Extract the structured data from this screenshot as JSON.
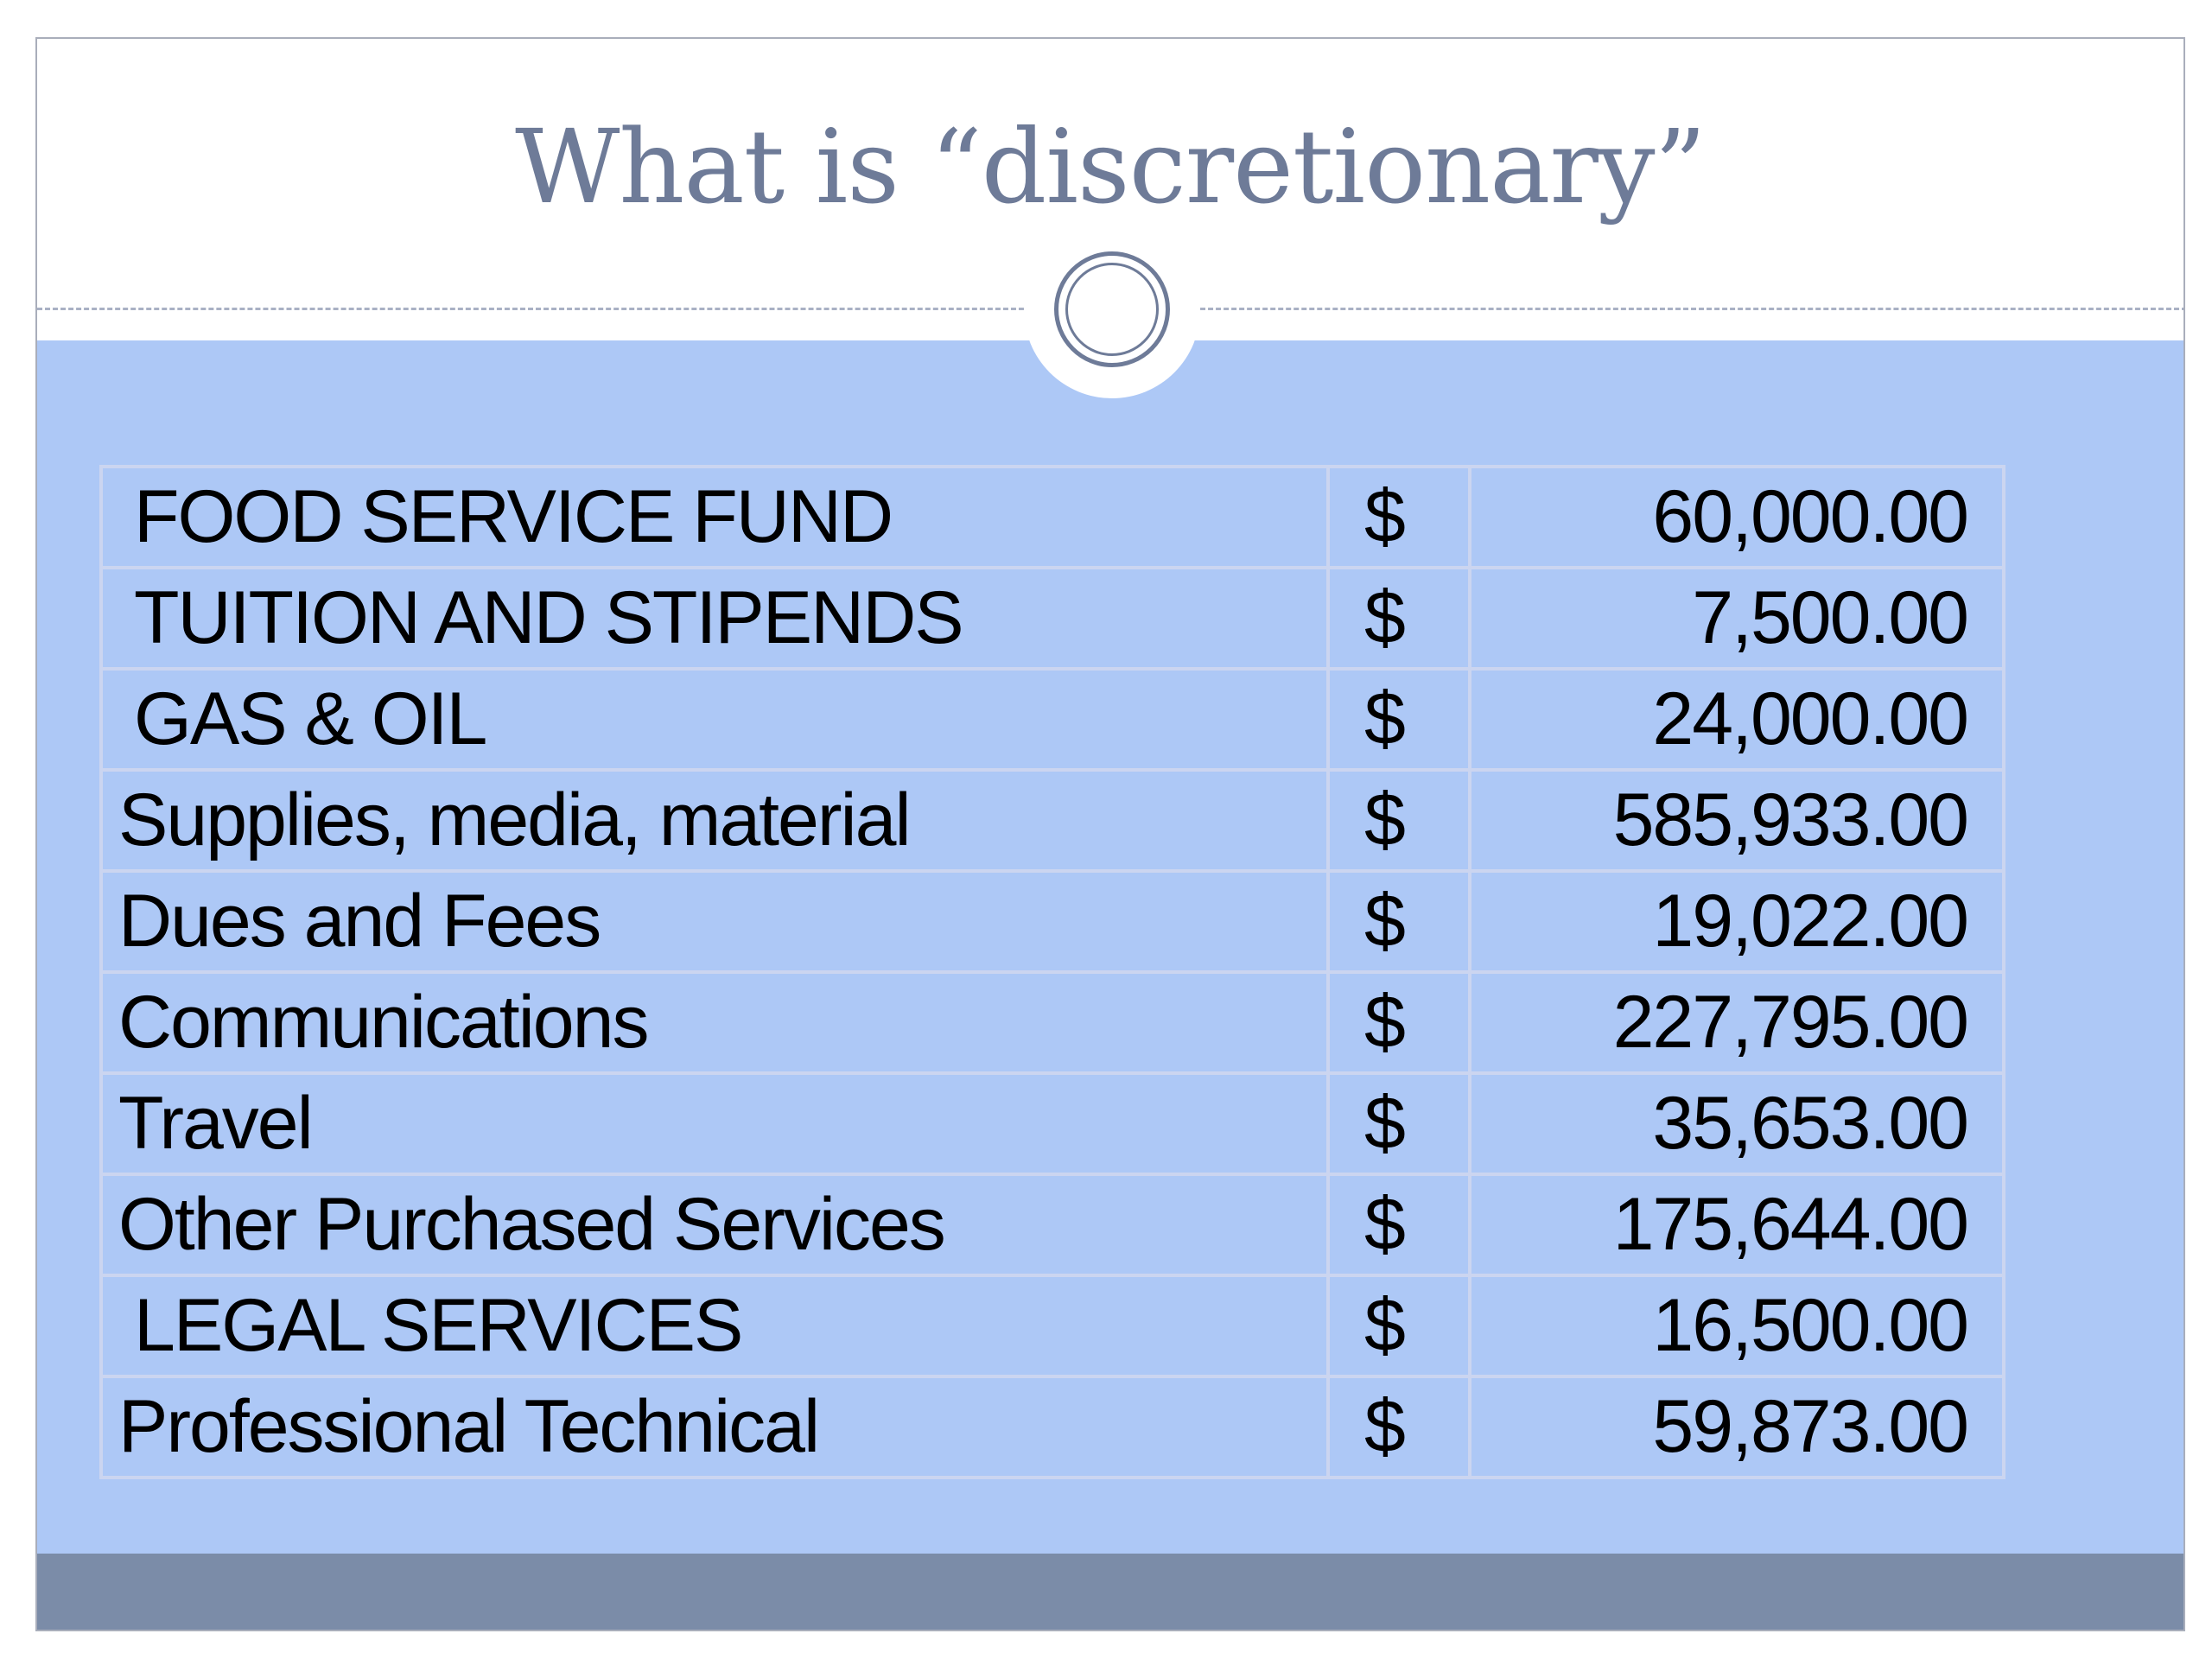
{
  "slide": {
    "title": "What is “discretionary”"
  },
  "table": {
    "rows": [
      {
        "item": "FOOD SERVICE FUND",
        "currency": "$",
        "amount": "60,000.00",
        "indent": true
      },
      {
        "item": "TUITION AND STIPENDS",
        "currency": "$",
        "amount": "7,500.00",
        "indent": true
      },
      {
        "item": "GAS & OIL",
        "currency": "$",
        "amount": "24,000.00",
        "indent": true
      },
      {
        "item": "Supplies, media, material",
        "currency": "$",
        "amount": "585,933.00",
        "indent": false
      },
      {
        "item": "Dues and Fees",
        "currency": "$",
        "amount": "19,022.00",
        "indent": false
      },
      {
        "item": "Communications",
        "currency": "$",
        "amount": "227,795.00",
        "indent": false
      },
      {
        "item": "Travel",
        "currency": "$",
        "amount": "35,653.00",
        "indent": false
      },
      {
        "item": "Other Purchased Services",
        "currency": "$",
        "amount": "175,644.00",
        "indent": false
      },
      {
        "item": "LEGAL SERVICES",
        "currency": "$",
        "amount": "16,500.00",
        "indent": true
      },
      {
        "item": "Professional Technical",
        "currency": "$",
        "amount": "59,873.00",
        "indent": false
      }
    ]
  },
  "colors": {
    "title": "#6e7b98",
    "content_background": "#adc8f6",
    "footer_bar": "#7b8ca8",
    "table_border": "#cbd5f0"
  }
}
